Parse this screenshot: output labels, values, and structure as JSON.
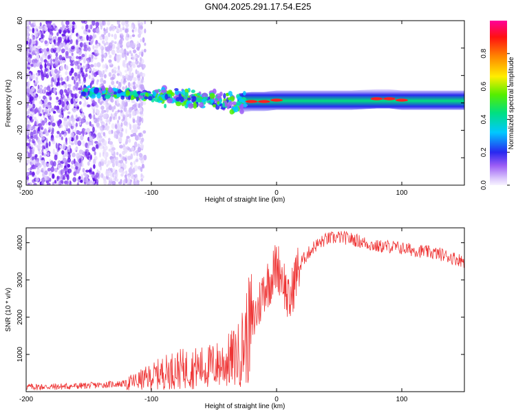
{
  "title": "GN04.2025.291.17.54.E25",
  "chart_data": [
    {
      "type": "heatmap",
      "xlabel": "Height of straight line (km)",
      "ylabel": "Frequency (Hz)",
      "xlim": [
        -200,
        150
      ],
      "ylim": [
        -60,
        60
      ],
      "xticks": [
        -200,
        -100,
        0,
        100
      ],
      "yticks": [
        -60,
        -40,
        -20,
        0,
        20,
        40,
        60
      ],
      "colorbar": {
        "label": "Normalized spectral amplitude",
        "range": [
          0,
          1
        ],
        "ticks": [
          0.0,
          0.2,
          0.4,
          0.6,
          0.8
        ],
        "tick_labels": [
          "0.0",
          "0.2",
          "0.4",
          "0.6",
          "0.8"
        ]
      },
      "noise_band_km": [
        -200,
        -105
      ],
      "ridge": {
        "x": [
          -155,
          -130,
          -100,
          -80,
          -60,
          -45,
          -30,
          -20,
          -10,
          0,
          20,
          40,
          60,
          80,
          90,
          100,
          120,
          150
        ],
        "freq": [
          8,
          7,
          5,
          4,
          3,
          1,
          0,
          1,
          1,
          2,
          2,
          2,
          2,
          3,
          3,
          2,
          2,
          2
        ],
        "amplitude": [
          0.2,
          0.3,
          0.35,
          0.4,
          0.4,
          0.45,
          0.45,
          0.75,
          0.85,
          0.85,
          0.55,
          0.5,
          0.5,
          0.7,
          0.8,
          0.85,
          0.55,
          0.5
        ]
      }
    },
    {
      "type": "line",
      "xlabel": "Height of straight line (km)",
      "ylabel": "SNR (10 * v/v)",
      "xlim": [
        -200,
        150
      ],
      "ylim": [
        0,
        4400
      ],
      "xticks": [
        -200,
        -100,
        0,
        100
      ],
      "yticks": [
        1000,
        2000,
        3000,
        4000
      ],
      "color": "#ee3333",
      "series": [
        {
          "name": "SNR",
          "x": [
            -200,
            -180,
            -160,
            -140,
            -120,
            -110,
            -100,
            -90,
            -80,
            -70,
            -60,
            -50,
            -40,
            -30,
            -25,
            -20,
            -15,
            -10,
            -5,
            0,
            5,
            10,
            15,
            20,
            30,
            40,
            50,
            60,
            70,
            80,
            90,
            100,
            110,
            120,
            130,
            140,
            150
          ],
          "y": [
            130,
            130,
            150,
            180,
            220,
            300,
            400,
            520,
            600,
            620,
            650,
            700,
            800,
            1000,
            1400,
            1800,
            2200,
            2800,
            3000,
            3400,
            3100,
            2300,
            3100,
            3500,
            3900,
            4100,
            4150,
            4100,
            4000,
            3900,
            3900,
            3850,
            3800,
            3750,
            3700,
            3600,
            3500
          ]
        }
      ]
    }
  ]
}
